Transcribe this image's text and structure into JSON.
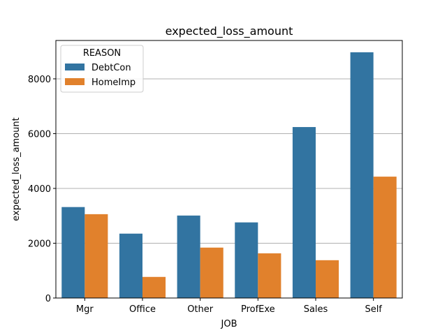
{
  "chart_data": {
    "type": "bar",
    "title": "expected_loss_amount",
    "xlabel": "JOB",
    "ylabel": "expected_loss_amount",
    "categories": [
      "Mgr",
      "Office",
      "Other",
      "ProfExe",
      "Sales",
      "Self"
    ],
    "series": [
      {
        "name": "DebtCon",
        "color": "#3274a1",
        "values": [
          3320,
          2350,
          3010,
          2760,
          6240,
          8970
        ]
      },
      {
        "name": "HomeImp",
        "color": "#e1812c",
        "values": [
          3060,
          770,
          1840,
          1630,
          1380,
          4430
        ]
      }
    ],
    "ylim": [
      0,
      9400
    ],
    "yticks": [
      0,
      2000,
      4000,
      6000,
      8000
    ],
    "grid": {
      "y": true,
      "x": false
    },
    "legend": {
      "title": "REASON",
      "placement": "top-left"
    }
  }
}
